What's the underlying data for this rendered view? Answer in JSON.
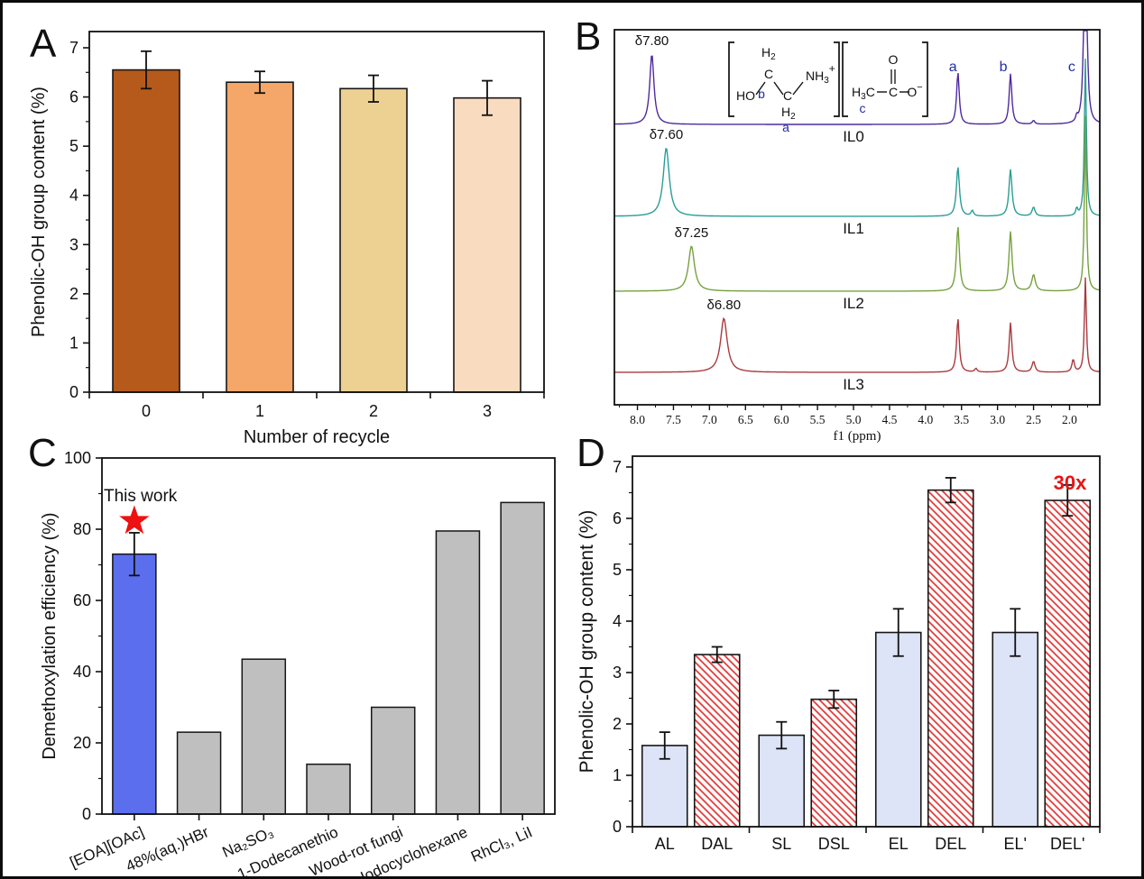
{
  "figure": {
    "panel_labels": [
      "A",
      "B",
      "C",
      "D"
    ],
    "background": "#ffffff",
    "border_color": "#0c0c0c"
  },
  "chart_data": [
    {
      "panel": "A",
      "type": "bar",
      "categories": [
        "0",
        "1",
        "2",
        "3"
      ],
      "values": [
        6.55,
        6.3,
        6.17,
        5.98
      ],
      "errors": [
        0.38,
        0.22,
        0.27,
        0.35
      ],
      "bar_colors": [
        "#b65a1c",
        "#f4a768",
        "#edd192",
        "#f9dcc0"
      ],
      "bar_edge_color": "#161616",
      "xlabel": "Number of recycle",
      "ylabel": "Phenolic-OH group content (%)",
      "ylim": [
        0,
        7
      ],
      "yticks": [
        "0",
        "1",
        "2",
        "3",
        "4",
        "5",
        "6",
        "7"
      ],
      "grid": false
    },
    {
      "panel": "B",
      "type": "line",
      "xlabel": "f1 (ppm)",
      "x_ticks": [
        "8.0",
        "7.5",
        "7.0",
        "6.5",
        "6.0",
        "5.5",
        "5.0",
        "4.5",
        "4.0",
        "3.5",
        "3.0",
        "2.5",
        "2.0"
      ],
      "x_range": [
        8.32,
        1.58
      ],
      "peak_labels": {
        "a": 3.62,
        "b": 2.92,
        "c": 1.97
      },
      "peak_label_color": "#1f2fa6",
      "series": [
        {
          "name": "IL0",
          "color": "#4f2a9e",
          "delta_label": "δ7.80",
          "delta_ppm": 7.8,
          "peaks": [
            [
              7.8,
              78,
              0.035
            ],
            [
              3.55,
              58,
              0.022
            ],
            [
              2.82,
              56,
              0.022
            ],
            [
              2.5,
              4,
              0.02
            ],
            [
              1.9,
              6,
              0.015
            ],
            [
              1.78,
              420,
              0.016
            ]
          ]
        },
        {
          "name": "IL1",
          "color": "#2a9d96",
          "delta_label": "δ7.60",
          "delta_ppm": 7.6,
          "peaks": [
            [
              7.6,
              76,
              0.05
            ],
            [
              3.55,
              55,
              0.025
            ],
            [
              3.35,
              6,
              0.02
            ],
            [
              2.82,
              52,
              0.025
            ],
            [
              2.5,
              10,
              0.025
            ],
            [
              1.9,
              8,
              0.015
            ],
            [
              1.78,
              175,
              0.016
            ]
          ]
        },
        {
          "name": "IL2",
          "color": "#76a13f",
          "delta_label": "δ7.25",
          "delta_ppm": 7.25,
          "peaks": [
            [
              7.25,
              50,
              0.05
            ],
            [
              3.55,
              72,
              0.025
            ],
            [
              2.82,
              66,
              0.025
            ],
            [
              2.5,
              18,
              0.03
            ],
            [
              1.78,
              195,
              0.016
            ]
          ]
        },
        {
          "name": "IL3",
          "color": "#a93a3e",
          "delta_label": "δ6.80",
          "delta_ppm": 6.8,
          "peaks": [
            [
              6.8,
              60,
              0.055
            ],
            [
              3.55,
              60,
              0.022
            ],
            [
              3.3,
              4,
              0.02
            ],
            [
              2.82,
              55,
              0.022
            ],
            [
              2.5,
              12,
              0.025
            ],
            [
              1.95,
              14,
              0.02
            ],
            [
              1.78,
              105,
              0.016
            ]
          ]
        }
      ],
      "structure": {
        "hydroxyl": "HO",
        "h2": "H2",
        "carbon": "C",
        "ammonium_n": "NH",
        "sub3": "3",
        "plus": "+",
        "methyl_h": "H",
        "methyl_c": "C",
        "oxygen": "O",
        "oxide": "O",
        "minus": "−",
        "a": "a",
        "b": "b",
        "c": "c",
        "label_color": "#1f2fa6"
      }
    },
    {
      "panel": "C",
      "type": "bar",
      "categories": [
        "[EOA][OAc]",
        "48%(aq.)HBr",
        "Na₂SO₃",
        "1-Dodecanethio",
        "Wood-rot fungi",
        "Iodocyclohexane",
        "RhCl₃, LiI"
      ],
      "values": [
        73,
        23,
        43.5,
        14,
        30,
        79.5,
        87.5
      ],
      "errors": [
        6,
        null,
        null,
        null,
        null,
        null,
        null
      ],
      "bar_colors": [
        "#5b6eee",
        "#bfbfbf",
        "#bfbfbf",
        "#bfbfbf",
        "#bfbfbf",
        "#bfbfbf",
        "#bfbfbf"
      ],
      "bar_edge_color": "#161616",
      "ylabel": "Demethoxylation efficiency (%)",
      "ylim": [
        0,
        100
      ],
      "yticks": [
        "0",
        "20",
        "40",
        "60",
        "80",
        "100"
      ],
      "annotation": {
        "text": "This work",
        "marker": "star",
        "marker_color": "#ee1111",
        "marker_value": 82.3
      },
      "grid": false
    },
    {
      "panel": "D",
      "type": "bar",
      "categories": [
        "AL",
        "DAL",
        "SL",
        "DSL",
        "EL",
        "DEL",
        "EL'",
        "DEL'"
      ],
      "values": [
        1.58,
        3.35,
        1.78,
        2.48,
        3.78,
        6.55,
        3.78,
        6.35
      ],
      "errors": [
        0.26,
        0.15,
        0.26,
        0.17,
        0.46,
        0.24,
        0.46,
        0.3
      ],
      "styles": [
        "solid",
        "hatch",
        "solid",
        "hatch",
        "solid",
        "hatch",
        "solid",
        "hatch"
      ],
      "colors": {
        "solid_fill": "#dde4f7",
        "hatch_line": "#e23b3b",
        "hatch_bg": "#fffbfa",
        "edge": "#161616"
      },
      "group_size": 2,
      "ylabel": "Phenolic-OH group content (%)",
      "ylim": [
        0,
        7
      ],
      "yticks": [
        "0",
        "1",
        "2",
        "3",
        "4",
        "5",
        "6",
        "7"
      ],
      "annotation": {
        "text": "30x",
        "color": "#e81414"
      },
      "grid": false
    }
  ]
}
